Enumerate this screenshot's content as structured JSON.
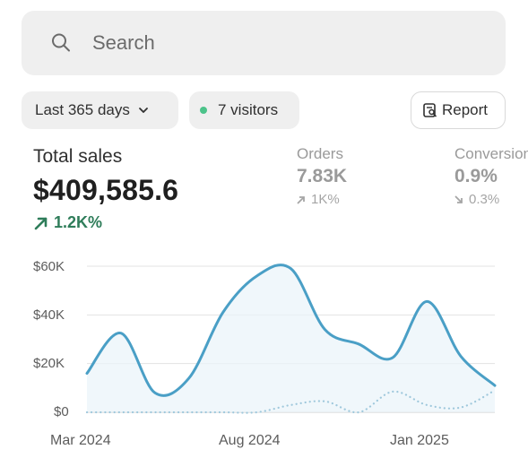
{
  "search": {
    "placeholder": "Search"
  },
  "filters": {
    "date_range": "Last 365 days",
    "visitors": "7 visitors",
    "visitors_dot_color": "#4cc38a",
    "report": "Report"
  },
  "summary": {
    "title": "Total sales",
    "value": "$409,585.6",
    "delta": "1.2K%",
    "delta_color": "#2f7d5a"
  },
  "orders": {
    "label": "Orders",
    "value": "7.83K",
    "delta": "1K%",
    "direction": "up"
  },
  "conversion": {
    "label": "Conversion",
    "value": "0.9%",
    "delta": "0.3%",
    "direction": "down"
  },
  "chart_data": {
    "type": "line",
    "x_ticks": [
      "Mar 2024",
      "Aug 2024",
      "Jan 2025"
    ],
    "y_ticks": [
      "$0",
      "$20K",
      "$40K",
      "$60K"
    ],
    "ylim": [
      0,
      60000
    ],
    "grid": true,
    "series": [
      {
        "style": "solid",
        "color": "#4a9fc6",
        "values": [
          16000,
          32500,
          8000,
          14000,
          41000,
          56000,
          59000,
          34000,
          28000,
          22500,
          45500,
          23000,
          11000
        ]
      },
      {
        "style": "dotted",
        "color": "#9fc8dc",
        "values": [
          0,
          0,
          0,
          0,
          0,
          0,
          3000,
          4500,
          0,
          8500,
          3000,
          2000,
          9000
        ]
      }
    ]
  }
}
